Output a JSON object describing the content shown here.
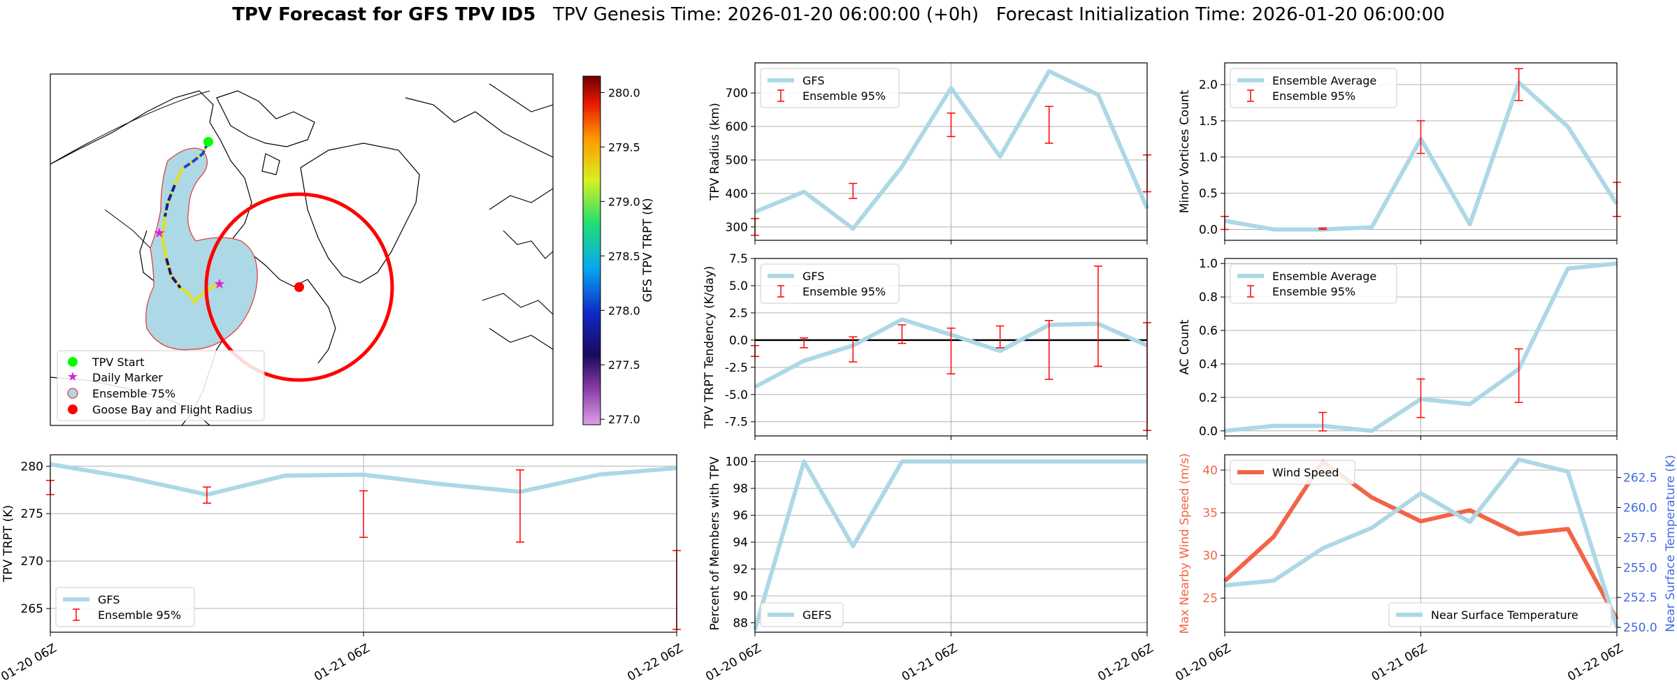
{
  "title": {
    "bold": "TPV Forecast for GFS TPV ID5",
    "genesis": "TPV Genesis Time: 2026-01-20 06:00:00 (+0h)",
    "init": "Forecast Initialization Time: 2026-01-20 06:00:00"
  },
  "colors": {
    "line": "#add8e6",
    "err": "#ff0000",
    "wind": "#f26446",
    "temp_axis": "#4169e1",
    "wind_axis": "#f26446"
  },
  "x_ticks": [
    "01-20 06Z",
    "01-21 06Z",
    "01-22 06Z"
  ],
  "map": {
    "legend": [
      "TPV Start",
      "Daily Marker",
      "Ensemble 75%",
      "Goose Bay and Flight Radius"
    ],
    "colorbar": {
      "label": "GFS TPV TRPT (K)",
      "ticks": [
        "280.0",
        "279.5",
        "279.0",
        "278.5",
        "278.0",
        "277.5",
        "277.0"
      ],
      "min": 276.95,
      "max": 280.15
    }
  },
  "chart_data": [
    {
      "id": "radius",
      "type": "line",
      "ylabel": "TPV Radius (km)",
      "x": [
        0,
        1,
        2,
        3,
        4,
        5,
        6,
        7,
        8
      ],
      "series": [
        {
          "name": "GFS",
          "values": [
            345,
            405,
            295,
            480,
            715,
            510,
            765,
            695,
            355
          ]
        }
      ],
      "errorbars": {
        "name": "Ensemble 95%",
        "x": [
          0,
          2,
          4,
          6,
          8
        ],
        "low": [
          275,
          385,
          570,
          550,
          405
        ],
        "high": [
          325,
          430,
          640,
          660,
          515
        ]
      },
      "ylim": [
        260,
        790
      ],
      "yticks": [
        300,
        400,
        500,
        600,
        700
      ],
      "hline": null
    },
    {
      "id": "minor",
      "type": "line",
      "ylabel": "Minor Vortices Count",
      "x": [
        0,
        1,
        2,
        3,
        4,
        5,
        6,
        7,
        8
      ],
      "series": [
        {
          "name": "Ensemble Average",
          "values": [
            0.12,
            0.0,
            0.0,
            0.03,
            1.25,
            0.07,
            2.03,
            1.42,
            0.35
          ]
        }
      ],
      "errorbars": {
        "name": "Ensemble 95%",
        "x": [
          0,
          2,
          4,
          6,
          8
        ],
        "low": [
          0,
          0,
          1.05,
          1.78,
          0.18
        ],
        "high": [
          0.18,
          0.02,
          1.5,
          2.22,
          0.65
        ]
      },
      "ylim": [
        -0.15,
        2.3
      ],
      "yticks": [
        0.0,
        0.5,
        1.0,
        1.5,
        2.0
      ],
      "hline": null
    },
    {
      "id": "tendency",
      "type": "line",
      "ylabel": "TPV TRPT Tendency (K/day)",
      "x": [
        0,
        1,
        2,
        3,
        4,
        5,
        6,
        7,
        8
      ],
      "series": [
        {
          "name": "GFS",
          "values": [
            -4.3,
            -1.9,
            -0.5,
            1.9,
            0.5,
            -1.0,
            1.4,
            1.5,
            -0.5
          ]
        }
      ],
      "errorbars": {
        "name": "Ensemble 95%",
        "x": [
          0,
          1,
          2,
          3,
          4,
          5,
          6,
          7,
          8
        ],
        "low": [
          -1.5,
          -0.7,
          -2.0,
          -0.3,
          -3.1,
          -0.7,
          -3.6,
          -2.4,
          -8.3
        ],
        "high": [
          -0.5,
          0.2,
          0.3,
          1.4,
          1.1,
          1.3,
          1.8,
          6.8,
          1.6
        ]
      },
      "ylim": [
        -8.8,
        7.5
      ],
      "yticks": [
        -7.5,
        -5.0,
        -2.5,
        0.0,
        2.5,
        5.0,
        7.5
      ],
      "hline": 0
    },
    {
      "id": "ac",
      "type": "line",
      "ylabel": "AC Count",
      "x": [
        0,
        1,
        2,
        3,
        4,
        5,
        6,
        7,
        8
      ],
      "series": [
        {
          "name": "Ensemble Average",
          "values": [
            0.0,
            0.03,
            0.03,
            0.0,
            0.19,
            0.16,
            0.37,
            0.97,
            1.0
          ]
        }
      ],
      "errorbars": {
        "name": "Ensemble 95%",
        "x": [
          2,
          4,
          6
        ],
        "low": [
          0.0,
          0.08,
          0.17
        ],
        "high": [
          0.11,
          0.31,
          0.49
        ]
      },
      "ylim": [
        -0.03,
        1.03
      ],
      "yticks": [
        0.0,
        0.2,
        0.4,
        0.6,
        0.8,
        1.0
      ],
      "hline": null
    },
    {
      "id": "trpt",
      "type": "line",
      "ylabel": "TPV TRPT (K)",
      "x": [
        0,
        1,
        2,
        3,
        4,
        5,
        6,
        7,
        8
      ],
      "series": [
        {
          "name": "GFS",
          "values": [
            280.2,
            278.8,
            277.0,
            279.0,
            279.1,
            278.1,
            277.3,
            279.1,
            279.8
          ]
        }
      ],
      "errorbars": {
        "name": "Ensemble 95%",
        "x": [
          0,
          2,
          4,
          6,
          8
        ],
        "low": [
          277.0,
          276.1,
          272.5,
          272.0,
          262.8
        ],
        "high": [
          278.5,
          277.8,
          277.4,
          279.6,
          271.1
        ]
      },
      "ylim": [
        262.5,
        281.2
      ],
      "yticks": [
        265,
        270,
        275,
        280
      ],
      "hline": null
    },
    {
      "id": "percent",
      "type": "line",
      "ylabel": "Percent of Members with TPV",
      "x": [
        0,
        1,
        2,
        3,
        4,
        5,
        6,
        7,
        8
      ],
      "series": [
        {
          "name": "GEFS",
          "values": [
            87.5,
            100,
            93.7,
            100,
            100,
            100,
            100,
            100,
            100
          ]
        }
      ],
      "errorbars": null,
      "ylim": [
        87.3,
        100.5
      ],
      "yticks": [
        88,
        90,
        92,
        94,
        96,
        98,
        100
      ],
      "hline": null
    },
    {
      "id": "wind",
      "type": "line",
      "ylabel": "Max Nearby Wind Speed (m/s)",
      "ylabel_right": "Near Surface Temperature (K)",
      "x": [
        0,
        1,
        2,
        3,
        4,
        5,
        6,
        7,
        8
      ],
      "series": [
        {
          "name": "Wind Speed",
          "axis": "left",
          "values": [
            27.0,
            32.2,
            41.0,
            36.8,
            34.0,
            35.3,
            32.5,
            33.1,
            22.5
          ]
        },
        {
          "name": "Near Surface Temperature",
          "axis": "right",
          "values": [
            253.5,
            253.9,
            256.6,
            258.3,
            261.2,
            258.8,
            264.0,
            263.0,
            250.0
          ]
        }
      ],
      "ylim": [
        21.0,
        41.8
      ],
      "yticks": [
        25,
        30,
        35,
        40
      ],
      "ylim_right": [
        249.6,
        264.4
      ],
      "yticks_right": [
        250.0,
        252.5,
        255.0,
        257.5,
        260.0,
        262.5
      ]
    }
  ]
}
